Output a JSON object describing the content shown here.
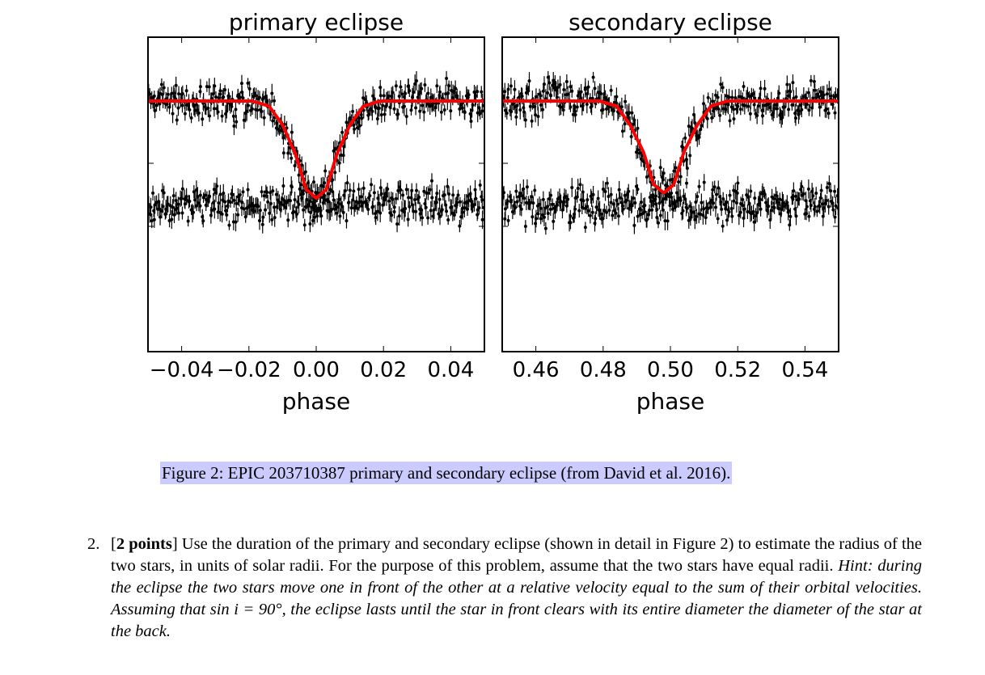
{
  "chart_data": [
    {
      "type": "scatter",
      "title": "primary eclipse",
      "xlabel": "phase",
      "ylabel": "",
      "xlim": [
        -0.05,
        0.05
      ],
      "xticks": [
        "−0.04",
        "−0.02",
        "0.00",
        "0.02",
        "0.04"
      ],
      "xtick_values": [
        -0.04,
        -0.02,
        0.0,
        0.02,
        0.04
      ],
      "model": {
        "color": "#ff0000",
        "x": [
          -0.05,
          -0.019,
          -0.014,
          -0.01,
          -0.006,
          -0.003,
          0.0,
          0.003,
          0.006,
          0.01,
          0.014,
          0.019,
          0.05
        ],
        "y": [
          1.0,
          1.0,
          0.985,
          0.93,
          0.84,
          0.74,
          0.715,
          0.74,
          0.84,
          0.93,
          0.985,
          1.0,
          1.0
        ]
      },
      "residual_offset": 0.45,
      "grid": false,
      "legend": "none"
    },
    {
      "type": "scatter",
      "title": "secondary eclipse",
      "xlabel": "phase",
      "ylabel": "",
      "xlim": [
        0.45,
        0.55
      ],
      "xticks": [
        "0.46",
        "0.48",
        "0.50",
        "0.52",
        "0.54"
      ],
      "xtick_values": [
        0.46,
        0.48,
        0.5,
        0.52,
        0.54
      ],
      "model": {
        "color": "#ff0000",
        "x": [
          0.45,
          0.479,
          0.484,
          0.488,
          0.492,
          0.495,
          0.498,
          0.501,
          0.504,
          0.508,
          0.512,
          0.517,
          0.55
        ],
        "y": [
          1.0,
          1.0,
          0.985,
          0.93,
          0.85,
          0.755,
          0.73,
          0.755,
          0.85,
          0.93,
          0.985,
          1.0,
          1.0
        ]
      },
      "residual_offset": 0.45,
      "grid": false,
      "legend": "none"
    }
  ],
  "caption": "Figure 2: EPIC 203710387 primary and secondary eclipse (from David et al. 2016).",
  "problem": {
    "number": "2.",
    "points_open": "[",
    "points_label": "2 points",
    "points_close": "]",
    "text": " Use the duration of the primary and secondary eclipse (shown in detail in Figure 2) to estimate the radius of the two stars, in units of solar radii. For the purpose of this problem, assume that the two stars have equal radii. ",
    "hint": "Hint: during the eclipse the two stars move one in front of the other at a relative velocity equal to the sum of their orbital velocities. Assuming that sin i = 90°, the eclipse lasts until the star in front clears with its entire diameter the diameter of the star at the back."
  },
  "colors": {
    "model_line": "#ff0000",
    "data_points": "#000000",
    "caption_highlight": "#cbcbff"
  }
}
